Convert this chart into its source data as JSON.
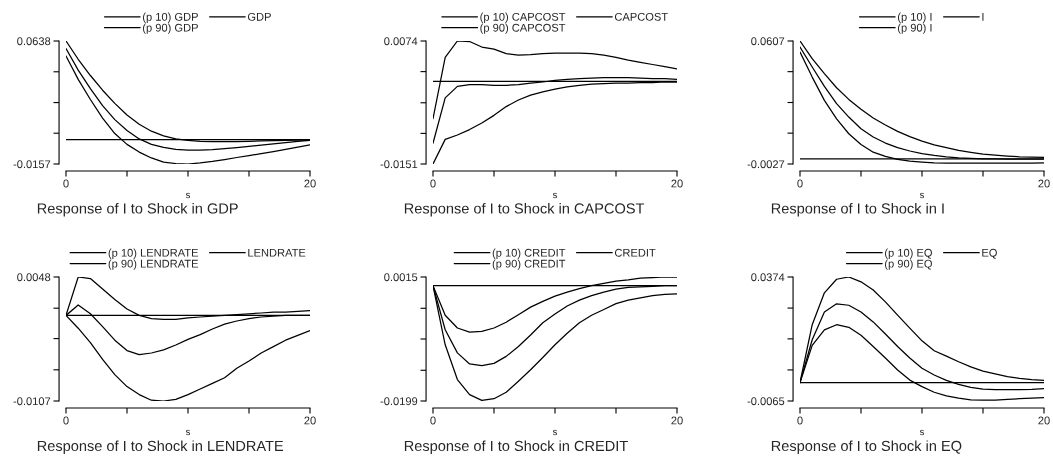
{
  "chart_data": [
    {
      "type": "line",
      "title": "Response of I to Shock in GDP",
      "xlabel": "s",
      "x": [
        0,
        1,
        2,
        3,
        4,
        5,
        6,
        7,
        8,
        9,
        10,
        11,
        12,
        13,
        14,
        15,
        16,
        17,
        18,
        19,
        20
      ],
      "xlim": [
        0,
        20
      ],
      "xticks": [
        0,
        {
          "value": 5,
          "label": null
        },
        {
          "value": 10,
          "label": null
        },
        {
          "value": 15,
          "label": null
        },
        20
      ],
      "ylim": [
        -0.0157,
        0.0638
      ],
      "yticks": [
        -0.0157,
        {
          "value": 0.0042,
          "label": null
        },
        {
          "value": 0.024,
          "label": null
        },
        {
          "value": 0.0439,
          "label": null
        },
        0.0638
      ],
      "legend": "top",
      "grid": false,
      "ref_lines": [
        {
          "axis": "y",
          "value": 0,
          "color": "#000000"
        }
      ],
      "series": [
        {
          "name": "(p 10) GDP",
          "color": "#000000",
          "values": [
            0.0541,
            0.039,
            0.026,
            0.014,
            0.004,
            -0.003,
            -0.008,
            -0.0118,
            -0.0145,
            -0.0154,
            -0.0157,
            -0.015,
            -0.014,
            -0.0128,
            -0.0115,
            -0.0103,
            -0.009,
            -0.0077,
            -0.0063,
            -0.0048,
            -0.0034
          ]
        },
        {
          "name": "(p 90) GDP",
          "color": "#000000",
          "values": [
            0.0638,
            0.052,
            0.0415,
            0.032,
            0.0235,
            0.016,
            0.01,
            0.0055,
            0.0025,
            0.0005,
            -0.0004,
            -0.001,
            -0.0013,
            -0.0013,
            -0.0012,
            -0.001,
            -0.0008,
            -0.0006,
            -0.0004,
            -0.0003,
            -0.0002
          ]
        },
        {
          "name": "GDP",
          "color": "#000000",
          "values": [
            0.0589,
            0.045,
            0.033,
            0.022,
            0.013,
            0.006,
            0.0005,
            -0.003,
            -0.005,
            -0.0062,
            -0.0067,
            -0.0067,
            -0.0064,
            -0.0058,
            -0.0051,
            -0.0043,
            -0.0035,
            -0.0027,
            -0.0019,
            -0.0011,
            -0.0005
          ]
        }
      ]
    },
    {
      "type": "line",
      "title": "Response of I to Shock in CAPCOST",
      "xlabel": "s",
      "x": [
        0,
        1,
        2,
        3,
        4,
        5,
        6,
        7,
        8,
        9,
        10,
        11,
        12,
        13,
        14,
        15,
        16,
        17,
        18,
        19,
        20
      ],
      "xlim": [
        0,
        20
      ],
      "xticks": [
        0,
        {
          "value": 5,
          "label": null
        },
        {
          "value": 10,
          "label": null
        },
        {
          "value": 15,
          "label": null
        },
        20
      ],
      "ylim": [
        -0.0151,
        0.0074
      ],
      "yticks": [
        -0.0151,
        {
          "value": -0.0095,
          "label": null
        },
        {
          "value": -0.0039,
          "label": null
        },
        {
          "value": 0.0018,
          "label": null
        },
        0.0074
      ],
      "legend": "top",
      "grid": false,
      "ref_lines": [
        {
          "axis": "y",
          "value": 0,
          "color": "#000000"
        }
      ],
      "series": [
        {
          "name": "(p 10) CAPCOST",
          "color": "#000000",
          "values": [
            -0.0151,
            -0.0106,
            -0.0098,
            -0.0088,
            -0.0076,
            -0.0062,
            -0.0046,
            -0.0034,
            -0.0025,
            -0.0019,
            -0.0014,
            -0.001,
            -0.0007,
            -0.0005,
            -0.0004,
            -0.0003,
            -0.0003,
            -0.0002,
            -0.0002,
            -0.0001,
            -0.0001
          ]
        },
        {
          "name": "(p 90) CAPCOST",
          "color": "#000000",
          "values": [
            -0.0068,
            0.0044,
            0.0074,
            0.0073,
            0.0063,
            0.0059,
            0.0051,
            0.0048,
            0.0049,
            0.0051,
            0.0052,
            0.0052,
            0.0052,
            0.0051,
            0.0048,
            0.0044,
            0.0039,
            0.0035,
            0.0031,
            0.0027,
            0.0023
          ]
        },
        {
          "name": "CAPCOST",
          "color": "#000000",
          "values": [
            -0.0113,
            -0.003,
            -0.0009,
            -0.0006,
            -0.0006,
            -0.0007,
            -0.0007,
            -0.0006,
            -0.0003,
            -0.0001,
            0.0002,
            0.0004,
            0.0005,
            0.0006,
            0.0007,
            0.0007,
            0.0007,
            0.0006,
            0.0005,
            0.0005,
            0.0004
          ]
        }
      ]
    },
    {
      "type": "line",
      "title": "Response of I to Shock in I",
      "xlabel": "s",
      "x": [
        0,
        1,
        2,
        3,
        4,
        5,
        6,
        7,
        8,
        9,
        10,
        11,
        12,
        13,
        14,
        15,
        16,
        17,
        18,
        19,
        20
      ],
      "xlim": [
        0,
        20
      ],
      "xticks": [
        0,
        {
          "value": 5,
          "label": null
        },
        {
          "value": 10,
          "label": null
        },
        {
          "value": 15,
          "label": null
        },
        20
      ],
      "ylim": [
        -0.0027,
        0.0607
      ],
      "yticks": [
        -0.0027,
        {
          "value": 0.0132,
          "label": null
        },
        {
          "value": 0.029,
          "label": null
        },
        {
          "value": 0.0449,
          "label": null
        },
        0.0607
      ],
      "legend": "top",
      "grid": false,
      "ref_lines": [
        {
          "axis": "y",
          "value": 0,
          "color": "#000000"
        }
      ],
      "series": [
        {
          "name": "(p 10) I",
          "color": "#000000",
          "values": [
            0.055,
            0.0421,
            0.0301,
            0.0206,
            0.0129,
            0.0074,
            0.0034,
            0.0012,
            -0.0003,
            -0.0012,
            -0.0017,
            -0.0021,
            -0.0022,
            -0.0022,
            -0.0022,
            -0.0022,
            -0.0022,
            -0.0022,
            -0.0022,
            -0.0022,
            -0.0021
          ]
        },
        {
          "name": "(p 90) I",
          "color": "#000000",
          "values": [
            0.0607,
            0.0516,
            0.0439,
            0.0366,
            0.0306,
            0.0255,
            0.021,
            0.0174,
            0.0141,
            0.0114,
            0.0091,
            0.0072,
            0.0057,
            0.0043,
            0.0033,
            0.0024,
            0.0019,
            0.0014,
            0.001,
            0.0009,
            0.0007
          ]
        },
        {
          "name": "I",
          "color": "#000000",
          "values": [
            0.0576,
            0.0473,
            0.0373,
            0.0284,
            0.0215,
            0.0155,
            0.0112,
            0.0081,
            0.0057,
            0.004,
            0.0026,
            0.0017,
            0.001,
            0.0005,
            0.0002,
            0.0,
            -0.0001,
            -0.0002,
            -0.0002,
            -0.0002,
            -0.0002
          ]
        }
      ]
    },
    {
      "type": "line",
      "title": "Response of I to Shock in LENDRATE",
      "xlabel": "s",
      "x": [
        0,
        1,
        2,
        3,
        4,
        5,
        6,
        7,
        8,
        9,
        10,
        11,
        12,
        13,
        14,
        15,
        16,
        17,
        18,
        19,
        20
      ],
      "xlim": [
        0,
        20
      ],
      "xticks": [
        0,
        {
          "value": 5,
          "label": null
        },
        {
          "value": 10,
          "label": null
        },
        {
          "value": 15,
          "label": null
        },
        20
      ],
      "ylim": [
        -0.0107,
        0.0048
      ],
      "yticks": [
        -0.0107,
        {
          "value": -0.0068,
          "label": null
        },
        {
          "value": -0.0029,
          "label": null
        },
        {
          "value": 0.0009,
          "label": null
        },
        0.0048
      ],
      "legend": "top",
      "grid": false,
      "ref_lines": [
        {
          "axis": "y",
          "value": 0,
          "color": "#000000"
        }
      ],
      "series": [
        {
          "name": "(p 10) LENDRATE",
          "color": "#000000",
          "values": [
            0.0,
            -0.0016,
            -0.0034,
            -0.0055,
            -0.0074,
            -0.0089,
            -0.0099,
            -0.0106,
            -0.0107,
            -0.0105,
            -0.0099,
            -0.0092,
            -0.0085,
            -0.0078,
            -0.0066,
            -0.0057,
            -0.0047,
            -0.0039,
            -0.0031,
            -0.0025,
            -0.0019
          ]
        },
        {
          "name": "(p 90) LENDRATE",
          "color": "#000000",
          "values": [
            0.0,
            0.0048,
            0.0046,
            0.0033,
            0.002,
            0.0008,
            0.0,
            -0.0004,
            -0.0005,
            -0.0005,
            -0.0003,
            -0.0002,
            -0.0001,
            0.0,
            0.0001,
            0.0002,
            0.0003,
            0.0004,
            0.0004,
            0.0005,
            0.0006
          ]
        },
        {
          "name": "LENDRATE",
          "color": "#000000",
          "values": [
            0.0,
            0.0013,
            0.0002,
            -0.0014,
            -0.0031,
            -0.0044,
            -0.0049,
            -0.0047,
            -0.0043,
            -0.0037,
            -0.003,
            -0.0024,
            -0.0017,
            -0.0011,
            -0.0007,
            -0.0004,
            -0.0002,
            -0.0001,
            0.0,
            0.0,
            0.0
          ]
        }
      ]
    },
    {
      "type": "line",
      "title": "Response of I to Shock in CREDIT",
      "xlabel": "s",
      "x": [
        0,
        1,
        2,
        3,
        4,
        5,
        6,
        7,
        8,
        9,
        10,
        11,
        12,
        13,
        14,
        15,
        16,
        17,
        18,
        19,
        20
      ],
      "xlim": [
        0,
        20
      ],
      "xticks": [
        0,
        {
          "value": 5,
          "label": null
        },
        {
          "value": 10,
          "label": null
        },
        {
          "value": 15,
          "label": null
        },
        20
      ],
      "ylim": [
        -0.0199,
        0.0015
      ],
      "yticks": [
        -0.0199,
        {
          "value": -0.0146,
          "label": null
        },
        {
          "value": -0.0092,
          "label": null
        },
        {
          "value": -0.0039,
          "label": null
        },
        0.0015
      ],
      "legend": "top",
      "grid": false,
      "ref_lines": [
        {
          "axis": "y",
          "value": 0,
          "color": "#000000"
        }
      ],
      "series": [
        {
          "name": "(p 10) CREDIT",
          "color": "#000000",
          "values": [
            0.0,
            -0.0102,
            -0.0162,
            -0.0188,
            -0.0198,
            -0.0195,
            -0.0184,
            -0.0165,
            -0.0145,
            -0.0124,
            -0.0102,
            -0.0082,
            -0.0064,
            -0.0051,
            -0.0041,
            -0.0031,
            -0.0025,
            -0.0021,
            -0.0017,
            -0.0015,
            -0.0014
          ]
        },
        {
          "name": "(p 90) CREDIT",
          "color": "#000000",
          "values": [
            0.0,
            -0.0051,
            -0.0073,
            -0.008,
            -0.0079,
            -0.0073,
            -0.0063,
            -0.005,
            -0.0037,
            -0.0027,
            -0.0018,
            -0.0011,
            -0.0005,
            0.0,
            0.0004,
            0.0008,
            0.001,
            0.0013,
            0.0014,
            0.0015,
            0.0015
          ]
        },
        {
          "name": "CREDIT",
          "color": "#000000",
          "values": [
            0.0,
            -0.0076,
            -0.0116,
            -0.0135,
            -0.0138,
            -0.0134,
            -0.0122,
            -0.0105,
            -0.0085,
            -0.0064,
            -0.0049,
            -0.0035,
            -0.0025,
            -0.0017,
            -0.0011,
            -0.0006,
            -0.0003,
            -0.0002,
            -0.0001,
            0.0,
            0.0
          ]
        }
      ]
    },
    {
      "type": "line",
      "title": "Response of I to Shock in EQ",
      "xlabel": "s",
      "x": [
        0,
        1,
        2,
        3,
        4,
        5,
        6,
        7,
        8,
        9,
        10,
        11,
        12,
        13,
        14,
        15,
        16,
        17,
        18,
        19,
        20
      ],
      "xlim": [
        0,
        20
      ],
      "xticks": [
        0,
        {
          "value": 5,
          "label": null
        },
        {
          "value": 10,
          "label": null
        },
        {
          "value": 15,
          "label": null
        },
        20
      ],
      "ylim": [
        -0.0065,
        0.0374
      ],
      "yticks": [
        -0.0065,
        {
          "value": 0.0045,
          "label": null
        },
        {
          "value": 0.0155,
          "label": null
        },
        {
          "value": 0.0264,
          "label": null
        },
        0.0374
      ],
      "legend": "top",
      "grid": false,
      "ref_lines": [
        {
          "axis": "y",
          "value": 0,
          "color": "#000000"
        }
      ],
      "series": [
        {
          "name": "(p 10) EQ",
          "color": "#000000",
          "values": [
            0.0,
            0.0132,
            0.0187,
            0.0205,
            0.0196,
            0.0168,
            0.0128,
            0.0087,
            0.0045,
            0.0009,
            -0.0014,
            -0.0034,
            -0.0047,
            -0.0055,
            -0.0061,
            -0.0062,
            -0.0062,
            -0.0059,
            -0.0057,
            -0.0055,
            -0.0053
          ]
        },
        {
          "name": "(p 90) EQ",
          "color": "#000000",
          "values": [
            0.0,
            0.0205,
            0.0318,
            0.0366,
            0.0374,
            0.0357,
            0.0328,
            0.0286,
            0.0239,
            0.0193,
            0.0148,
            0.0113,
            0.0094,
            0.0074,
            0.0056,
            0.0041,
            0.0031,
            0.0021,
            0.0015,
            0.0011,
            0.0008
          ]
        },
        {
          "name": "EQ",
          "color": "#000000",
          "values": [
            0.0,
            0.0152,
            0.025,
            0.0279,
            0.0274,
            0.025,
            0.0215,
            0.0172,
            0.0128,
            0.0087,
            0.0051,
            0.0027,
            0.0008,
            -0.0006,
            -0.0017,
            -0.0023,
            -0.0025,
            -0.0025,
            -0.0025,
            -0.0024,
            -0.0021
          ]
        }
      ]
    }
  ]
}
